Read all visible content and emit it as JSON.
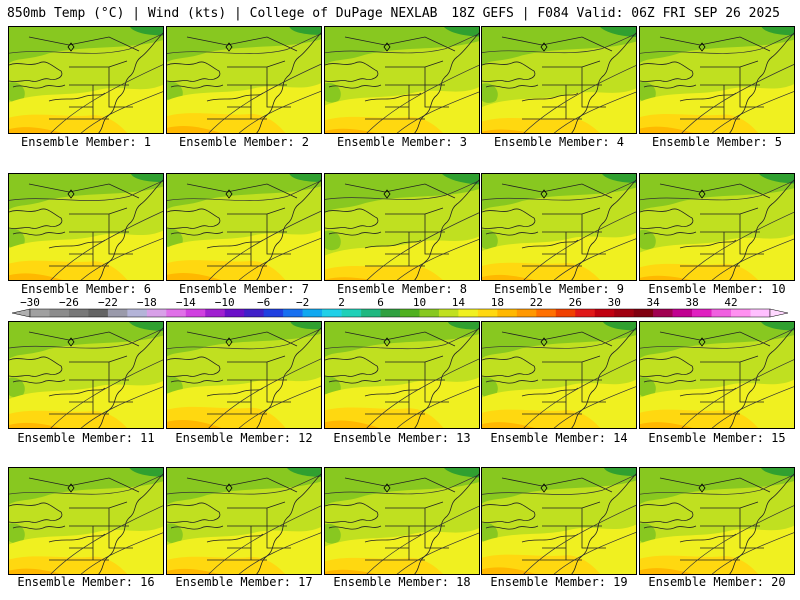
{
  "header": {
    "title_left": "850mb Temp (°C) | Wind (kts) | College of DuPage NEXLAB",
    "title_right": "18Z GEFS | F084 Valid: 06Z FRI SEP 26 2025"
  },
  "panel_label_prefix": "Ensemble Member: ",
  "members": [
    {
      "label": "Ensemble Member: 1",
      "warmth": 0.55
    },
    {
      "label": "Ensemble Member: 2",
      "warmth": 0.62
    },
    {
      "label": "Ensemble Member: 3",
      "warmth": 0.45
    },
    {
      "label": "Ensemble Member: 4",
      "warmth": 0.4
    },
    {
      "label": "Ensemble Member: 5",
      "warmth": 0.58
    },
    {
      "label": "Ensemble Member: 6",
      "warmth": 0.6
    },
    {
      "label": "Ensemble Member: 7",
      "warmth": 0.62
    },
    {
      "label": "Ensemble Member: 8",
      "warmth": 0.35
    },
    {
      "label": "Ensemble Member: 9",
      "warmth": 0.5
    },
    {
      "label": "Ensemble Member: 10",
      "warmth": 0.45
    },
    {
      "label": "Ensemble Member: 11",
      "warmth": 0.5
    },
    {
      "label": "Ensemble Member: 12",
      "warmth": 0.68
    },
    {
      "label": "Ensemble Member: 13",
      "warmth": 0.65
    },
    {
      "label": "Ensemble Member: 14",
      "warmth": 0.55
    },
    {
      "label": "Ensemble Member: 15",
      "warmth": 0.55
    },
    {
      "label": "Ensemble Member: 16",
      "warmth": 0.52
    },
    {
      "label": "Ensemble Member: 17",
      "warmth": 0.5
    },
    {
      "label": "Ensemble Member: 18",
      "warmth": 0.45
    },
    {
      "label": "Ensemble Member: 19",
      "warmth": 0.6
    },
    {
      "label": "Ensemble Member: 20",
      "warmth": 0.55
    }
  ],
  "colorbar": {
    "labels": [
      "−30",
      "−26",
      "−22",
      "−18",
      "−14",
      "−10",
      "−6",
      "−2",
      "2",
      "6",
      "10",
      "14",
      "18",
      "22",
      "26",
      "30",
      "34",
      "38",
      "42"
    ],
    "colors": [
      "#a0a0a0",
      "#8c8c8c",
      "#787878",
      "#646464",
      "#9a9aaa",
      "#b4b4d8",
      "#d8a0e8",
      "#e070e8",
      "#d040e0",
      "#a020d0",
      "#6a10c8",
      "#4020c8",
      "#2040e0",
      "#1870f0",
      "#10a8f0",
      "#20d0e8",
      "#20d0b8",
      "#20b880",
      "#30a040",
      "#50b020",
      "#88c820",
      "#c0e020",
      "#f0f020",
      "#ffd810",
      "#ffb800",
      "#ff9800",
      "#ff7000",
      "#f04000",
      "#e01818",
      "#c00010",
      "#a00010",
      "#800010",
      "#a00050",
      "#c00090",
      "#e020c0",
      "#f060e0",
      "#ff90f0",
      "#ffc0ff"
    ]
  },
  "field_colors": {
    "cold": "#30a030",
    "cool": "#88c820",
    "mild": "#c0e020",
    "warm": "#f0f020",
    "hot": "#ffd810",
    "hotter": "#ffb800"
  }
}
